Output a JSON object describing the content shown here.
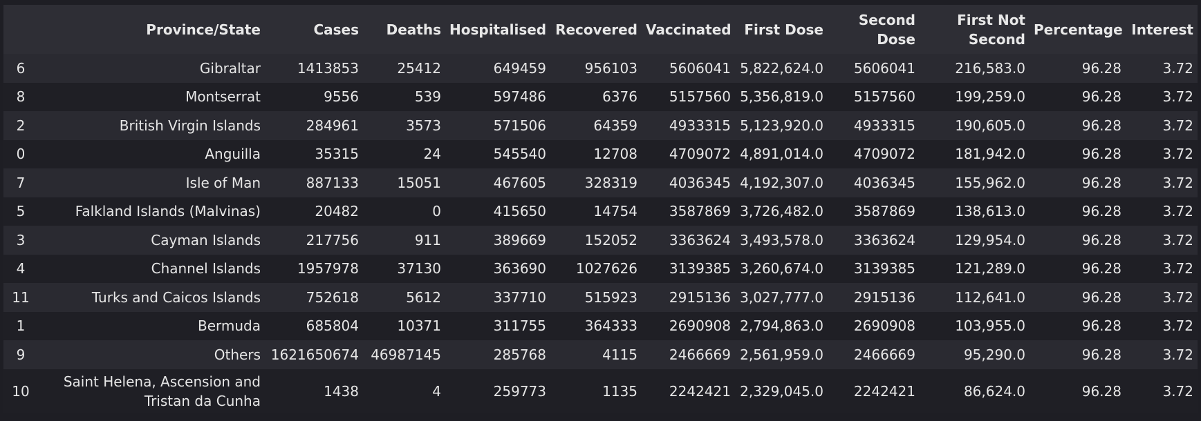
{
  "table": {
    "columns": [
      "",
      "Province/State",
      "Cases",
      "Deaths",
      "Hospitalised",
      "Recovered",
      "Vaccinated",
      "First Dose",
      "Second Dose",
      "First Not Second",
      "Percentage",
      "Interest"
    ],
    "rows": [
      [
        "6",
        "Gibraltar",
        "1413853",
        "25412",
        "649459",
        "956103",
        "5606041",
        "5,822,624.0",
        "5606041",
        "216,583.0",
        "96.28",
        "3.72"
      ],
      [
        "8",
        "Montserrat",
        "9556",
        "539",
        "597486",
        "6376",
        "5157560",
        "5,356,819.0",
        "5157560",
        "199,259.0",
        "96.28",
        "3.72"
      ],
      [
        "2",
        "British Virgin Islands",
        "284961",
        "3573",
        "571506",
        "64359",
        "4933315",
        "5,123,920.0",
        "4933315",
        "190,605.0",
        "96.28",
        "3.72"
      ],
      [
        "0",
        "Anguilla",
        "35315",
        "24",
        "545540",
        "12708",
        "4709072",
        "4,891,014.0",
        "4709072",
        "181,942.0",
        "96.28",
        "3.72"
      ],
      [
        "7",
        "Isle of Man",
        "887133",
        "15051",
        "467605",
        "328319",
        "4036345",
        "4,192,307.0",
        "4036345",
        "155,962.0",
        "96.28",
        "3.72"
      ],
      [
        "5",
        "Falkland Islands (Malvinas)",
        "20482",
        "0",
        "415650",
        "14754",
        "3587869",
        "3,726,482.0",
        "3587869",
        "138,613.0",
        "96.28",
        "3.72"
      ],
      [
        "3",
        "Cayman Islands",
        "217756",
        "911",
        "389669",
        "152052",
        "3363624",
        "3,493,578.0",
        "3363624",
        "129,954.0",
        "96.28",
        "3.72"
      ],
      [
        "4",
        "Channel Islands",
        "1957978",
        "37130",
        "363690",
        "1027626",
        "3139385",
        "3,260,674.0",
        "3139385",
        "121,289.0",
        "96.28",
        "3.72"
      ],
      [
        "11",
        "Turks and Caicos Islands",
        "752618",
        "5612",
        "337710",
        "515923",
        "2915136",
        "3,027,777.0",
        "2915136",
        "112,641.0",
        "96.28",
        "3.72"
      ],
      [
        "1",
        "Bermuda",
        "685804",
        "10371",
        "311755",
        "364333",
        "2690908",
        "2,794,863.0",
        "2690908",
        "103,955.0",
        "96.28",
        "3.72"
      ],
      [
        "9",
        "Others",
        "1621650674",
        "46987145",
        "285768",
        "4115",
        "2466669",
        "2,561,959.0",
        "2466669",
        "95,290.0",
        "96.28",
        "3.72"
      ],
      [
        "10",
        "Saint Helena, Ascension and Tristan da Cunha",
        "1438",
        "4",
        "259773",
        "1135",
        "2242421",
        "2,329,045.0",
        "2242421",
        "86,624.0",
        "96.28",
        "3.72"
      ]
    ]
  }
}
